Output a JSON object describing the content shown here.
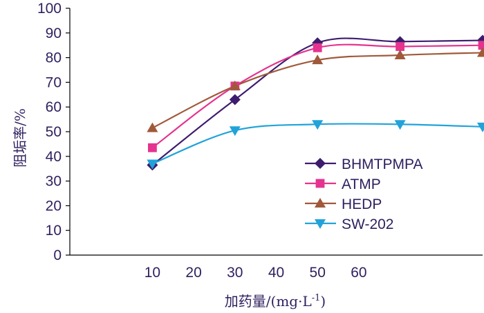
{
  "chart_data": {
    "type": "line",
    "title": "",
    "xlabel": "加药量/(mg·L",
    "xlabel_sup": "-1",
    "xlabel_close": ")",
    "ylabel": "阻垢率/%",
    "xlim": [
      -10,
      90
    ],
    "ylim": [
      0,
      100
    ],
    "x_ticks": [
      10,
      20,
      30,
      40,
      50,
      60
    ],
    "y_ticks": [
      0,
      10,
      20,
      30,
      40,
      50,
      60,
      70,
      80,
      90,
      100
    ],
    "grid": false,
    "legend_position": "right-bottom",
    "series": [
      {
        "name": "BHMTPMPA",
        "color": "#3d1c6e",
        "marker": "diamond",
        "x": [
          10,
          30,
          50,
          70,
          90
        ],
        "y": [
          36.5,
          63,
          86,
          86.5,
          87
        ]
      },
      {
        "name": "ATMP",
        "color": "#e5338f",
        "marker": "square",
        "x": [
          10,
          30,
          50,
          70,
          90
        ],
        "y": [
          43.5,
          68.5,
          84,
          84.5,
          85
        ]
      },
      {
        "name": "HEDP",
        "color": "#a0593a",
        "marker": "triangle-up",
        "x": [
          10,
          30,
          50,
          70,
          90
        ],
        "y": [
          51.5,
          68.5,
          79,
          81,
          82
        ]
      },
      {
        "name": "SW-202",
        "color": "#21a3d9",
        "marker": "triangle-down",
        "x": [
          10,
          30,
          50,
          70,
          90
        ],
        "y": [
          37,
          50.5,
          53,
          53,
          52
        ]
      }
    ]
  }
}
